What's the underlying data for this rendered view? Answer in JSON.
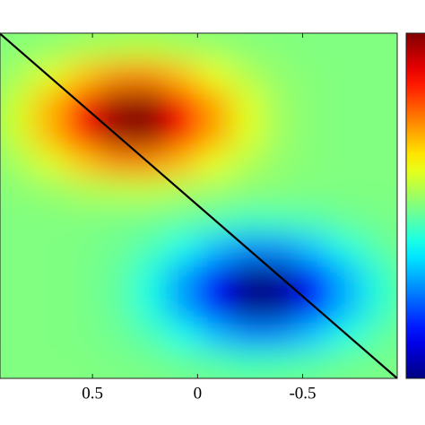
{
  "chart_data": {
    "type": "heatmap",
    "xlim": [
      0.94,
      -0.95
    ],
    "xticks": [
      0.5,
      0,
      -0.5
    ],
    "zlim": [
      -0.9,
      0.9
    ],
    "colormap": "jet",
    "z": [
      [
        0.02,
        0.04,
        0.08,
        0.1,
        0.11,
        0.08,
        0.05,
        0.02,
        0.01,
        0,
        0,
        0
      ],
      [
        0.07,
        0.17,
        0.32,
        0.43,
        0.44,
        0.34,
        0.19,
        0.09,
        0.03,
        0.01,
        0,
        0
      ],
      [
        0.15,
        0.35,
        0.64,
        0.86,
        0.89,
        0.68,
        0.39,
        0.17,
        0.05,
        0.01,
        0,
        0
      ],
      [
        0.15,
        0.35,
        0.64,
        0.86,
        0.89,
        0.68,
        0.39,
        0.17,
        0.05,
        0.01,
        0,
        0
      ],
      [
        0.07,
        0.17,
        0.32,
        0.43,
        0.44,
        0.34,
        0.19,
        0.09,
        0.03,
        0.01,
        0,
        0
      ],
      [
        0.02,
        0.04,
        0.08,
        0.1,
        0.11,
        0.08,
        0.05,
        0.02,
        0.01,
        0,
        0,
        0
      ],
      [
        0,
        0,
        0,
        -0.01,
        -0.02,
        -0.05,
        -0.08,
        -0.11,
        -0.1,
        -0.08,
        -0.04,
        -0.02
      ],
      [
        0,
        0,
        -0.01,
        -0.03,
        -0.09,
        -0.19,
        -0.34,
        -0.44,
        -0.43,
        -0.32,
        -0.17,
        -0.07
      ],
      [
        0,
        0,
        -0.01,
        -0.05,
        -0.17,
        -0.39,
        -0.68,
        -0.89,
        -0.86,
        -0.64,
        -0.35,
        -0.15
      ],
      [
        0,
        0,
        -0.01,
        -0.05,
        -0.17,
        -0.39,
        -0.68,
        -0.89,
        -0.86,
        -0.64,
        -0.35,
        -0.15
      ],
      [
        0,
        0,
        -0.01,
        -0.03,
        -0.09,
        -0.19,
        -0.34,
        -0.44,
        -0.43,
        -0.32,
        -0.17,
        -0.07
      ],
      [
        0,
        0,
        0,
        -0.01,
        -0.02,
        -0.05,
        -0.08,
        -0.11,
        -0.1,
        -0.08,
        -0.04,
        -0.02
      ]
    ]
  }
}
